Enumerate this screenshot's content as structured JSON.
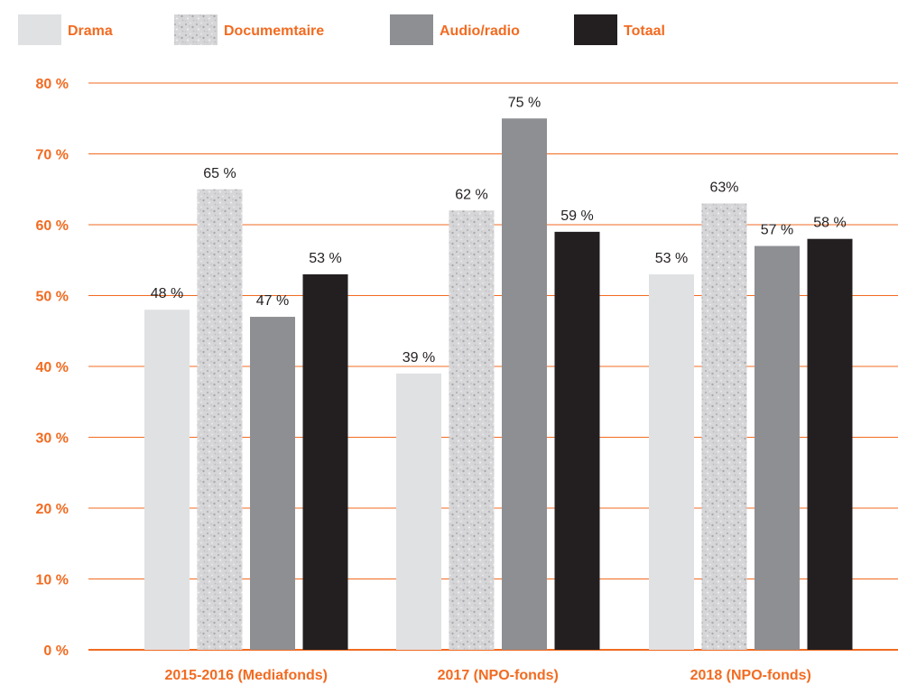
{
  "chart_data": {
    "type": "bar",
    "categories": [
      "2015-2016 (Mediafonds)",
      "2017 (NPO-fonds)",
      "2018 (NPO-fonds)"
    ],
    "series": [
      {
        "name": "Drama",
        "values": [
          48,
          39,
          53
        ],
        "labels": [
          "48 %",
          "39 %",
          "53 %"
        ]
      },
      {
        "name": "Documemtaire",
        "values": [
          65,
          62,
          63
        ],
        "labels": [
          "65 %",
          "62 %",
          "63%"
        ]
      },
      {
        "name": "Audio/radio",
        "values": [
          47,
          75,
          57
        ],
        "labels": [
          "47 %",
          "75 %",
          "57 %"
        ]
      },
      {
        "name": "Totaal",
        "values": [
          53,
          59,
          58
        ],
        "labels": [
          "53 %",
          "59 %",
          "58 %"
        ]
      }
    ],
    "y_ticks": [
      "0 %",
      "10 %",
      "20 %",
      "30 %",
      "40 %",
      "50 %",
      "60 %",
      "70 %",
      "80 %"
    ],
    "ylim": [
      0,
      80
    ],
    "grid": true,
    "legend_position": "top-left",
    "colors": {
      "Drama": "#e0e1e3",
      "Documemtaire": "#d4d4d6",
      "Audio/radio": "#8e8f92",
      "Totaal": "#231f20",
      "accent": "#f26b21",
      "text": "#231f20"
    },
    "patterns": {
      "Documemtaire": "speckled"
    }
  }
}
